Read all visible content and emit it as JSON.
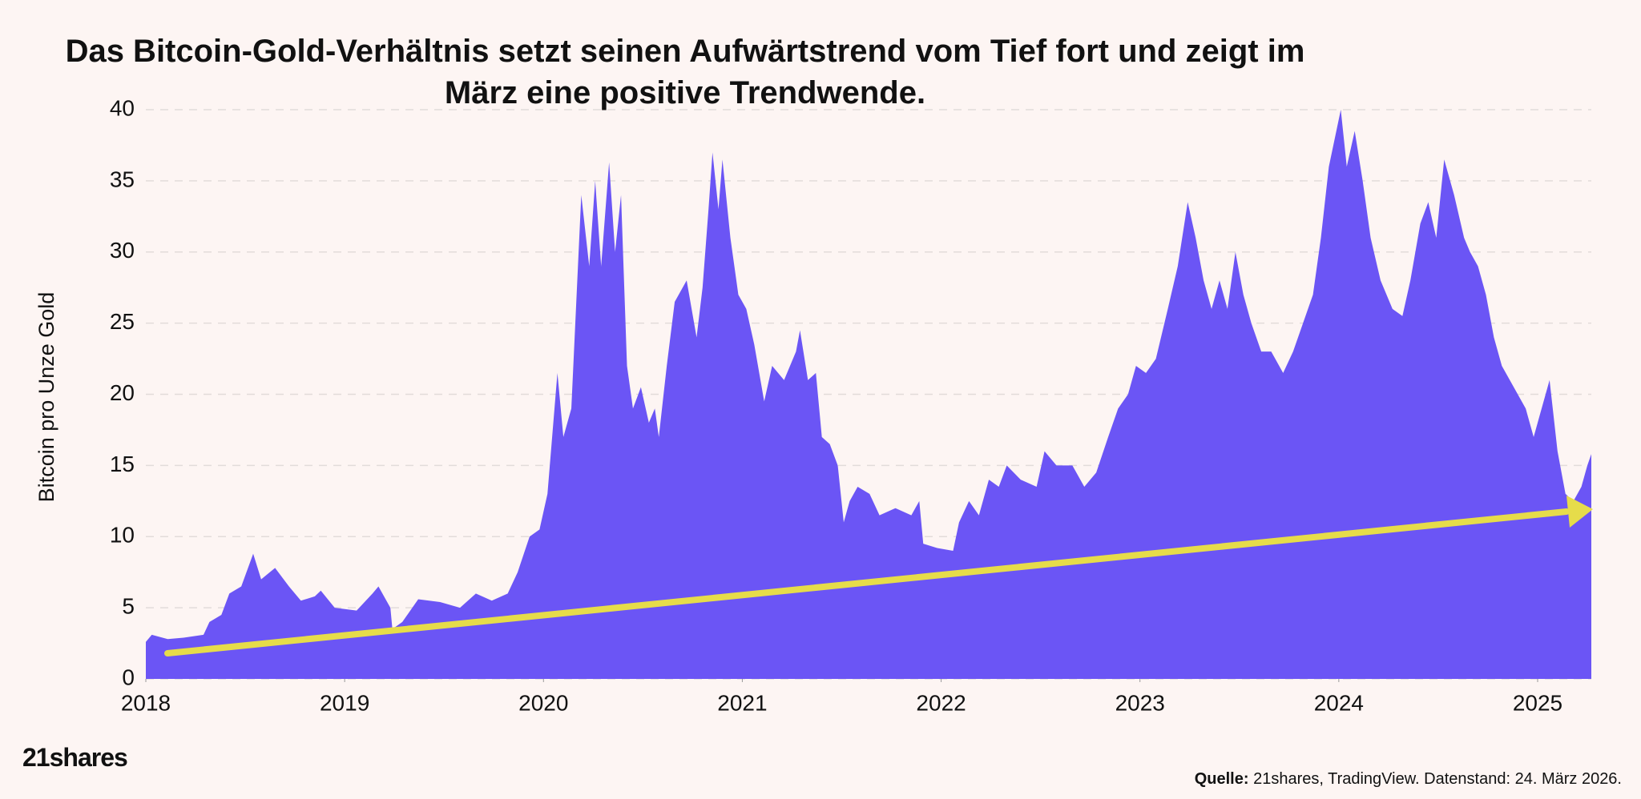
{
  "chart_data": {
    "type": "area",
    "title": "Das Bitcoin-Gold-Verhältnis setzt seinen Aufwärtstrend vom Tief fort und zeigt im März eine positive Trendwende.",
    "ylabel": "Bitcoin pro Unze Gold",
    "logo": "21shares",
    "source_label": "Quelle:",
    "source_text": "21shares, TradingView. Datenstand: 24. März 2026.",
    "color": "#6b55f5",
    "grid": true,
    "xlim": [
      2018,
      2025.27
    ],
    "xticks": [
      2018,
      2019,
      2020,
      2021,
      2022,
      2023,
      2024,
      2025
    ],
    "ylim": [
      0,
      40
    ],
    "yticks": [
      0,
      5,
      10,
      15,
      20,
      25,
      30,
      35,
      40
    ],
    "x": [
      2018.0,
      2018.03,
      2018.11,
      2018.19,
      2018.29,
      2018.32,
      2018.38,
      2018.42,
      2018.48,
      2018.54,
      2018.58,
      2018.65,
      2018.72,
      2018.78,
      2018.85,
      2018.88,
      2018.95,
      2019.06,
      2019.14,
      2019.17,
      2019.23,
      2019.24,
      2019.29,
      2019.37,
      2019.48,
      2019.58,
      2019.66,
      2019.74,
      2019.82,
      2019.87,
      2019.93,
      2019.98,
      2020.02,
      2020.07,
      2020.1,
      2020.14,
      2020.16,
      2020.19,
      2020.23,
      2020.26,
      2020.29,
      2020.33,
      2020.36,
      2020.39,
      2020.42,
      2020.45,
      2020.49,
      2020.53,
      2020.56,
      2020.58,
      2020.62,
      2020.66,
      2020.72,
      2020.77,
      2020.8,
      2020.83,
      2020.85,
      2020.88,
      2020.9,
      2020.94,
      2020.98,
      2021.02,
      2021.06,
      2021.11,
      2021.15,
      2021.21,
      2021.27,
      2021.29,
      2021.33,
      2021.37,
      2021.4,
      2021.44,
      2021.48,
      2021.51,
      2021.54,
      2021.58,
      2021.64,
      2021.69,
      2021.77,
      2021.85,
      2021.89,
      2021.91,
      2021.98,
      2022.06,
      2022.09,
      2022.14,
      2022.19,
      2022.24,
      2022.29,
      2022.33,
      2022.4,
      2022.48,
      2022.52,
      2022.58,
      2022.66,
      2022.72,
      2022.78,
      2022.84,
      2022.89,
      2022.94,
      2022.98,
      2023.03,
      2023.08,
      2023.14,
      2023.19,
      2023.24,
      2023.28,
      2023.32,
      2023.36,
      2023.4,
      2023.44,
      2023.48,
      2023.52,
      2023.56,
      2023.61,
      2023.66,
      2023.72,
      2023.77,
      2023.82,
      2023.87,
      2023.91,
      2023.95,
      2024.01,
      2024.04,
      2024.08,
      2024.12,
      2024.16,
      2024.21,
      2024.27,
      2024.32,
      2024.36,
      2024.41,
      2024.45,
      2024.49,
      2024.53,
      2024.58,
      2024.63,
      2024.66,
      2024.7,
      2024.74,
      2024.78,
      2024.82,
      2024.86,
      2024.9,
      2024.94,
      2024.98,
      2025.01,
      2025.06,
      2025.1,
      2025.14,
      2025.18,
      2025.22,
      2025.25,
      2025.27
    ],
    "values": [
      2.6,
      3.1,
      2.8,
      2.9,
      3.1,
      4.0,
      4.5,
      6.0,
      6.5,
      8.8,
      7.0,
      7.8,
      6.5,
      5.5,
      5.8,
      6.2,
      5.0,
      4.8,
      6.0,
      6.5,
      5.0,
      3.5,
      4.0,
      5.6,
      5.4,
      5.0,
      6.0,
      5.5,
      6.0,
      7.5,
      10,
      10.5,
      13,
      21.5,
      17,
      19,
      25,
      34,
      29,
      35,
      29,
      36.3,
      30,
      34,
      22,
      19,
      20.5,
      18,
      19,
      17,
      22,
      26.5,
      28,
      24,
      27.5,
      33,
      37,
      33,
      36.5,
      31,
      27,
      26,
      23.5,
      19.5,
      22,
      21,
      23,
      24.5,
      21,
      21.5,
      17,
      16.5,
      15,
      11,
      12.5,
      13.5,
      13,
      11.5,
      12,
      11.5,
      12.5,
      9.5,
      9.2,
      9.0,
      11,
      12.5,
      11.5,
      14,
      13.5,
      15,
      14,
      13.5,
      16,
      15,
      15,
      13.5,
      14.5,
      17,
      19,
      20,
      22,
      21.5,
      22.5,
      26,
      29,
      33.5,
      31,
      28,
      26,
      28,
      26,
      30,
      27,
      25,
      23,
      23,
      21.5,
      23,
      25,
      27,
      31,
      36,
      40,
      36,
      38.5,
      35,
      31,
      28,
      26,
      25.5,
      28,
      32,
      33.5,
      31,
      36.5,
      34,
      31,
      30,
      29,
      27,
      24,
      22,
      21,
      20,
      19,
      17,
      18.5,
      21,
      16,
      13,
      12.5,
      13.5,
      15,
      15.8
    ]
  }
}
